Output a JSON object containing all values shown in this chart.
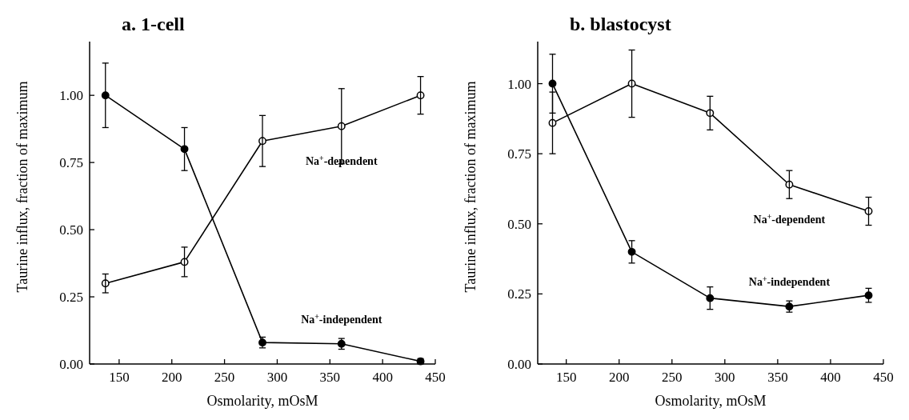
{
  "chart_data": [
    {
      "type": "line",
      "title": "a. 1-cell",
      "xlabel": "Osmolarity, mOsM",
      "ylabel": "Taurine influx, fraction of maximum",
      "xlim": [
        122,
        450
      ],
      "xticks": [
        150,
        200,
        250,
        300,
        350,
        400,
        450
      ],
      "ylim": [
        0,
        1.2
      ],
      "yticks": [
        {
          "value": 0,
          "label": "0.00"
        },
        {
          "value": 0.25,
          "label": "0.25"
        },
        {
          "value": 0.5,
          "label": "0.50"
        },
        {
          "value": 0.75,
          "label": "0.75"
        },
        {
          "value": 1,
          "label": "1.00"
        }
      ],
      "grid": false,
      "marker": "circle",
      "line_style": "solid",
      "series": [
        {
          "name": "Na$^{+}$-dependent",
          "color": "#000000",
          "x": [
            137,
            212,
            286,
            361,
            436
          ],
          "values": [
            0.3,
            0.38,
            0.83,
            0.885,
            1.0
          ],
          "errors": [
            0.035,
            0.055,
            0.095,
            0.14,
            0.07
          ]
        },
        {
          "name": "Na$^{+}$-independent",
          "color": "#000000",
          "x": [
            137,
            212,
            286,
            361,
            436
          ],
          "values": [
            1.0,
            0.8,
            0.08,
            0.075,
            0.01
          ],
          "errors": [
            0.12,
            0.08,
            0.02,
            0.02,
            0.01
          ]
        }
      ]
    },
    {
      "type": "line",
      "title": "b. blastocyst",
      "xlabel": "Osmolarity, mOsM",
      "ylabel": "Taurine influx, fraction of maximum",
      "xlim": [
        123,
        450
      ],
      "xticks": [
        150,
        200,
        250,
        300,
        350,
        400,
        450
      ],
      "ylim": [
        0,
        1.15
      ],
      "yticks": [
        {
          "value": 0,
          "label": "0.00"
        },
        {
          "value": 0.25,
          "label": "0.25"
        },
        {
          "value": 0.5,
          "label": "0.50"
        },
        {
          "value": 0.75,
          "label": "0.75"
        },
        {
          "value": 1,
          "label": "1.00"
        }
      ],
      "grid": false,
      "marker": "circle",
      "line_style": "solid",
      "series": [
        {
          "name": "Na$^{+}$-dependent",
          "color": "#000000",
          "x": [
            137,
            212,
            286,
            361,
            436
          ],
          "values": [
            0.86,
            1.0,
            0.895,
            0.64,
            0.545
          ],
          "errors": [
            0.11,
            0.12,
            0.06,
            0.05,
            0.05
          ]
        },
        {
          "name": "Na$^{+}$-independent",
          "color": "#000000",
          "x": [
            137,
            212,
            286,
            361,
            436
          ],
          "values": [
            1.0,
            0.4,
            0.235,
            0.205,
            0.245
          ],
          "errors": [
            0.105,
            0.04,
            0.04,
            0.02,
            0.025
          ]
        }
      ]
    }
  ]
}
